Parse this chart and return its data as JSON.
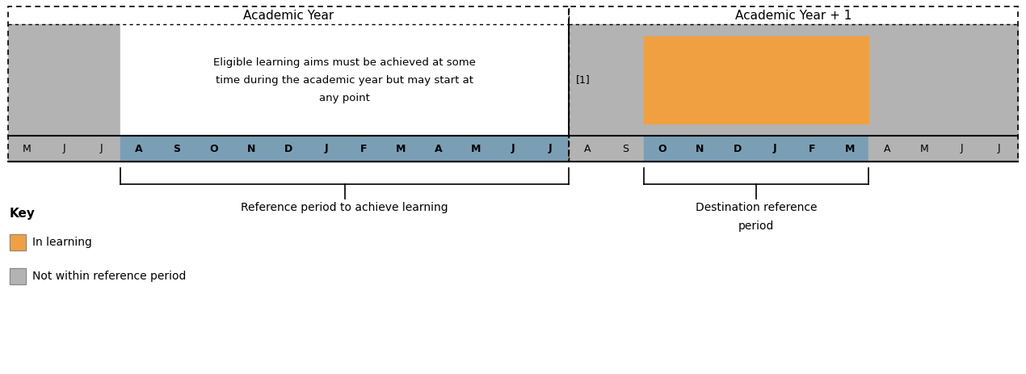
{
  "months": [
    "M",
    "J",
    "J",
    "A",
    "S",
    "O",
    "N",
    "D",
    "J",
    "F",
    "M",
    "A",
    "M",
    "J",
    "J",
    "A",
    "S",
    "O",
    "N",
    "D",
    "J",
    "F",
    "M",
    "A",
    "M",
    "J",
    "J"
  ],
  "n_months": 27,
  "gray_color": "#b3b3b3",
  "blue_color": "#7a9fb5",
  "orange_color": "#f0a040",
  "acad_year1_label": "Academic Year",
  "acad_year2_label": "Academic Year + 1",
  "text_box_text": "Eligible learning aims must be achieved at some\ntime during the academic year but may start at\nany point",
  "ref_period_label": "Reference period to achieve learning",
  "dest_ref_label": "Destination reference\nperiod",
  "footnote1": "[1]",
  "key_title": "Key",
  "key_orange_label": "In learning",
  "key_gray_label": "Not within reference period"
}
